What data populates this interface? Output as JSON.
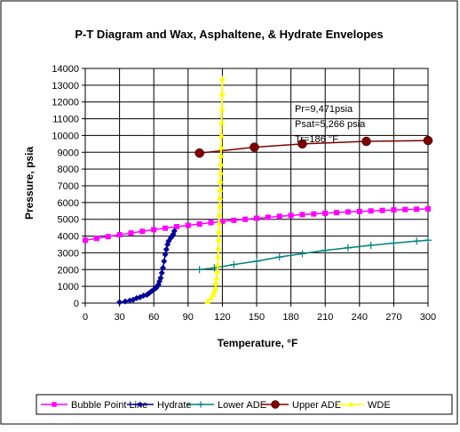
{
  "chart_data": {
    "type": "line",
    "title": "P-T Diagram and Wax, Asphaltene, & Hydrate Envelopes",
    "xlabel": "Temperature, °F",
    "ylabel": "Pressure, psia",
    "xlim": [
      0,
      300
    ],
    "ylim": [
      0,
      14000
    ],
    "xticks": [
      0,
      30,
      60,
      90,
      120,
      150,
      180,
      210,
      240,
      270,
      300
    ],
    "yticks": [
      0,
      1000,
      2000,
      3000,
      4000,
      5000,
      6000,
      7000,
      8000,
      9000,
      10000,
      11000,
      12000,
      13000,
      14000
    ],
    "grid": true,
    "legend_position": "bottom",
    "annotations": [
      "Pr=9,471psia",
      "Psat=5,266 psia",
      "Tr=186 °F"
    ],
    "series": [
      {
        "name": "Bubble Point Line",
        "color": "#ff00ff",
        "marker": "square",
        "x": [
          0,
          10,
          20,
          30,
          40,
          50,
          60,
          70,
          80,
          90,
          100,
          110,
          120,
          130,
          140,
          150,
          160,
          170,
          180,
          190,
          200,
          210,
          220,
          230,
          240,
          250,
          260,
          270,
          280,
          290,
          300
        ],
        "y": [
          3750,
          3860,
          3970,
          4080,
          4180,
          4280,
          4380,
          4470,
          4560,
          4640,
          4720,
          4800,
          4870,
          4940,
          5000,
          5060,
          5120,
          5180,
          5230,
          5280,
          5320,
          5360,
          5400,
          5440,
          5470,
          5500,
          5530,
          5560,
          5580,
          5600,
          5620
        ]
      },
      {
        "name": "Hydrate",
        "color": "#000099",
        "marker": "diamond",
        "x": [
          30,
          35,
          39,
          42,
          45,
          48,
          51,
          54,
          56,
          58,
          60,
          62,
          63,
          64,
          65,
          66,
          67,
          68,
          69,
          70,
          71,
          72,
          73,
          75,
          76,
          77,
          78
        ],
        "y": [
          50,
          100,
          150,
          200,
          300,
          350,
          450,
          500,
          600,
          700,
          800,
          900,
          1000,
          1100,
          1300,
          1500,
          1800,
          2100,
          2500,
          2900,
          3200,
          3500,
          3700,
          3900,
          4000,
          4100,
          4300
        ]
      },
      {
        "name": "Lower ADE",
        "color": "#008080",
        "marker": "plus",
        "x": [
          100,
          113,
          130,
          150,
          170,
          190,
          210,
          230,
          250,
          270,
          290,
          300
        ],
        "y": [
          2000,
          2100,
          2300,
          2500,
          2750,
          2950,
          3150,
          3300,
          3450,
          3580,
          3700,
          3750
        ]
      },
      {
        "name": "Upper ADE",
        "color": "#800000",
        "marker": "circle",
        "x": [
          100,
          148,
          190,
          246,
          300
        ],
        "y": [
          8950,
          9300,
          9500,
          9650,
          9700
        ]
      },
      {
        "name": "WDE",
        "color": "#ffff00",
        "marker": "triangle",
        "x": [
          107,
          110,
          112,
          113,
          114,
          114.5,
          115,
          115.5,
          116,
          116.3,
          116.6,
          116.8,
          117,
          117.2,
          117.4,
          117.6,
          117.8,
          118,
          118.2,
          118.4,
          118.6,
          118.8,
          119,
          119.2,
          119.4,
          119.6,
          119.8,
          120
        ],
        "y": [
          100,
          300,
          500,
          700,
          900,
          1200,
          1500,
          1900,
          2300,
          2800,
          3300,
          3800,
          4300,
          4800,
          5300,
          5800,
          6300,
          6800,
          7300,
          7800,
          8300,
          8800,
          9300,
          10000,
          10800,
          11600,
          12500,
          13400
        ]
      }
    ]
  }
}
